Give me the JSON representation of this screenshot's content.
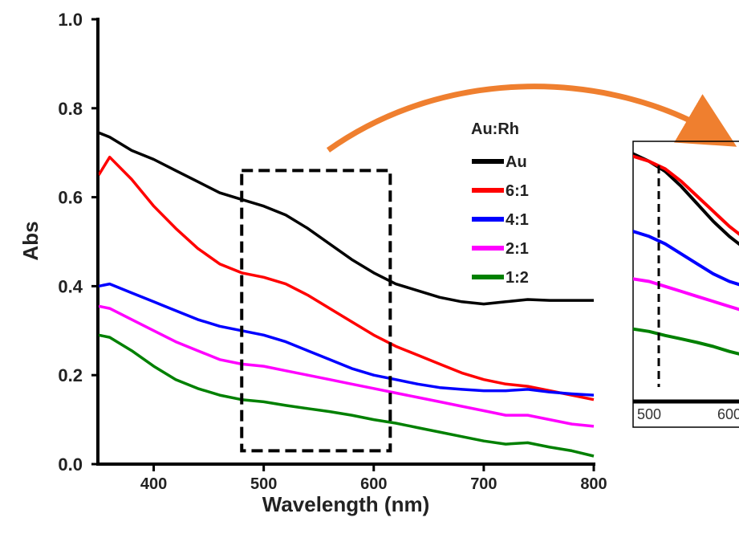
{
  "chart_data": {
    "type": "line",
    "xlabel": "Wavelength (nm)",
    "ylabel": "Abs",
    "xlim": [
      350,
      800
    ],
    "ylim": [
      0.0,
      1.0
    ],
    "x_ticks": [
      "400",
      "500",
      "600",
      "700",
      "800"
    ],
    "y_ticks": [
      "0.0",
      "0.2",
      "0.4",
      "0.6",
      "0.8",
      "1.0"
    ],
    "legend_title": "Au:Rh",
    "legend_position": "top-right",
    "x": [
      350,
      360,
      380,
      400,
      420,
      440,
      460,
      480,
      500,
      520,
      540,
      560,
      580,
      600,
      620,
      640,
      660,
      680,
      700,
      720,
      740,
      760,
      780,
      800
    ],
    "series": [
      {
        "name": "Au",
        "color": "#000000",
        "values": [
          0.745,
          0.735,
          0.705,
          0.685,
          0.66,
          0.635,
          0.61,
          0.595,
          0.58,
          0.56,
          0.53,
          0.495,
          0.46,
          0.43,
          0.405,
          0.39,
          0.375,
          0.365,
          0.36,
          0.365,
          0.37,
          0.368,
          0.368,
          0.368
        ]
      },
      {
        "name": "6:1",
        "color": "#ff0000",
        "values": [
          0.65,
          0.69,
          0.64,
          0.58,
          0.53,
          0.485,
          0.45,
          0.43,
          0.42,
          0.405,
          0.38,
          0.35,
          0.32,
          0.29,
          0.265,
          0.245,
          0.225,
          0.205,
          0.19,
          0.18,
          0.175,
          0.165,
          0.155,
          0.145
        ]
      },
      {
        "name": "4:1",
        "color": "#0000ff",
        "values": [
          0.4,
          0.405,
          0.385,
          0.365,
          0.345,
          0.325,
          0.31,
          0.3,
          0.29,
          0.275,
          0.255,
          0.235,
          0.215,
          0.2,
          0.19,
          0.18,
          0.172,
          0.168,
          0.165,
          0.165,
          0.168,
          0.162,
          0.158,
          0.155
        ]
      },
      {
        "name": "2:1",
        "color": "#ff00ff",
        "values": [
          0.355,
          0.35,
          0.325,
          0.3,
          0.275,
          0.255,
          0.235,
          0.225,
          0.22,
          0.21,
          0.2,
          0.19,
          0.18,
          0.17,
          0.16,
          0.15,
          0.14,
          0.13,
          0.12,
          0.11,
          0.11,
          0.1,
          0.09,
          0.085
        ]
      },
      {
        "name": "1:2",
        "color": "#008000",
        "values": [
          0.29,
          0.285,
          0.255,
          0.22,
          0.19,
          0.17,
          0.155,
          0.145,
          0.14,
          0.132,
          0.125,
          0.118,
          0.11,
          0.1,
          0.092,
          0.082,
          0.072,
          0.062,
          0.052,
          0.045,
          0.048,
          0.038,
          0.03,
          0.018
        ]
      }
    ],
    "highlight_box": {
      "x_range": [
        480,
        615
      ],
      "y_range": [
        0.03,
        0.66
      ]
    },
    "inset": {
      "x_ticks": [
        "500",
        "600"
      ],
      "xlim": [
        480,
        640
      ],
      "ylim": [
        0.1,
        0.62
      ],
      "marker_x": 512
    }
  }
}
